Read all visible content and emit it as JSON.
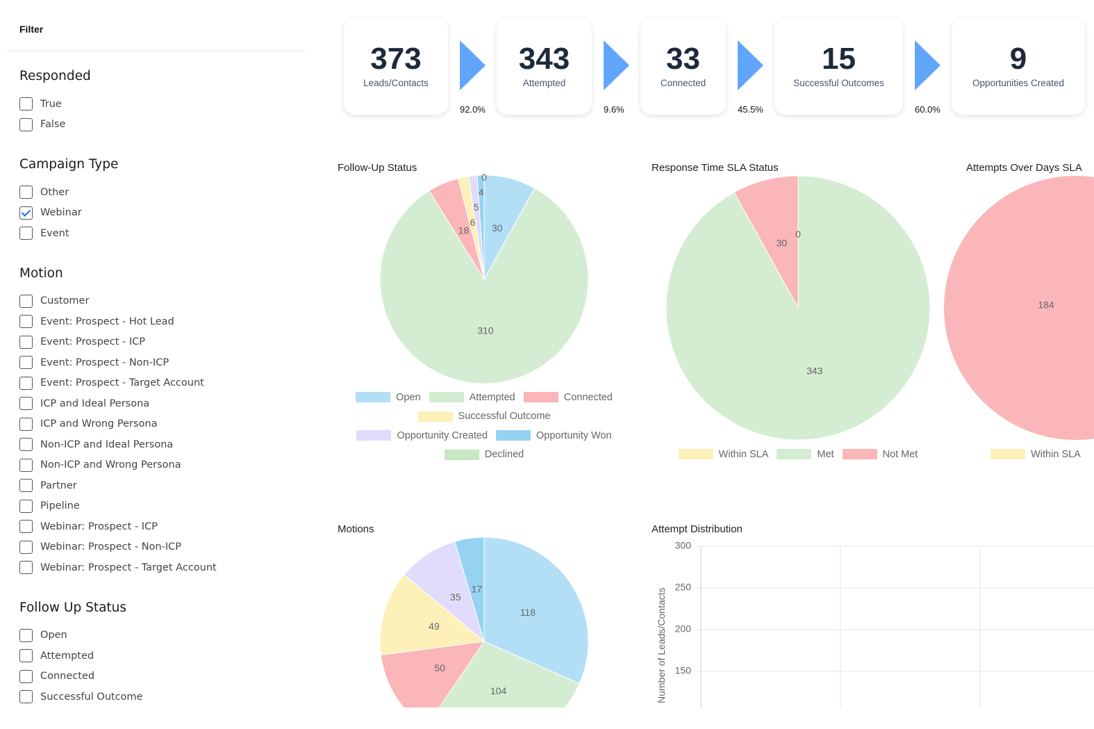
{
  "sidebar": {
    "title": "Filter",
    "sections": [
      {
        "title": "Responded",
        "items": [
          {
            "label": "True",
            "checked": false
          },
          {
            "label": "False",
            "checked": false
          }
        ]
      },
      {
        "title": "Campaign Type",
        "items": [
          {
            "label": "Other",
            "checked": false
          },
          {
            "label": "Webinar",
            "checked": true
          },
          {
            "label": "Event",
            "checked": false
          }
        ]
      },
      {
        "title": "Motion",
        "items": [
          {
            "label": "Customer",
            "checked": false
          },
          {
            "label": "Event: Prospect - Hot Lead",
            "checked": false
          },
          {
            "label": "Event: Prospect - ICP",
            "checked": false
          },
          {
            "label": "Event: Prospect - Non-ICP",
            "checked": false
          },
          {
            "label": "Event: Prospect - Target Account",
            "checked": false
          },
          {
            "label": "ICP and Ideal Persona",
            "checked": false
          },
          {
            "label": "ICP and Wrong Persona",
            "checked": false
          },
          {
            "label": "Non-ICP and Ideal Persona",
            "checked": false
          },
          {
            "label": "Non-ICP and Wrong Persona",
            "checked": false
          },
          {
            "label": "Partner",
            "checked": false
          },
          {
            "label": "Pipeline",
            "checked": false
          },
          {
            "label": "Webinar: Prospect - ICP",
            "checked": false
          },
          {
            "label": "Webinar: Prospect - Non-ICP",
            "checked": false
          },
          {
            "label": "Webinar: Prospect - Target Account",
            "checked": false
          }
        ]
      },
      {
        "title": "Follow Up Status",
        "items": [
          {
            "label": "Open",
            "checked": false
          },
          {
            "label": "Attempted",
            "checked": false
          },
          {
            "label": "Connected",
            "checked": false
          },
          {
            "label": "Successful Outcome",
            "checked": false
          }
        ]
      }
    ]
  },
  "funnel": {
    "stages": [
      {
        "value": "373",
        "label": "Leads/Contacts"
      },
      {
        "value": "343",
        "label": "Attempted"
      },
      {
        "value": "33",
        "label": "Connected"
      },
      {
        "value": "15",
        "label": "Successful Outcomes"
      },
      {
        "value": "9",
        "label": "Opportunities Created"
      }
    ],
    "conversions": [
      "92.0%",
      "9.6%",
      "45.5%",
      "60.0%"
    ],
    "arrow_color": "#60a5fa"
  },
  "chart_data": [
    {
      "type": "pie",
      "title": "Follow-Up Status",
      "categories": [
        "Open",
        "Attempted",
        "Connected",
        "Successful Outcome",
        "Opportunity Created",
        "Opportunity Won",
        "Declined"
      ],
      "values": [
        30,
        310,
        18,
        6,
        5,
        4,
        0
      ],
      "colors": [
        "#b3dff6",
        "#d4edd2",
        "#fab6b8",
        "#fdf0b8",
        "#e1dcfb",
        "#96d3f2",
        "#c6e7c1"
      ],
      "legend": "bottom"
    },
    {
      "type": "pie",
      "title": "Response Time SLA Status",
      "categories": [
        "Within SLA",
        "Met",
        "Not Met"
      ],
      "values": [
        0,
        343,
        30
      ],
      "colors": [
        "#fdf0b8",
        "#d4edd2",
        "#fab6b8"
      ],
      "legend": "bottom"
    },
    {
      "type": "pie",
      "title": "Attempts Over Days SLA",
      "categories": [
        "Within SLA"
      ],
      "visible_values": [
        {
          "category": "",
          "value": 184,
          "color": "#fab6b8"
        }
      ],
      "colors": [
        "#fdf0b8"
      ],
      "legend": "bottom"
    },
    {
      "type": "pie",
      "title": "Motions",
      "values": [
        118,
        104,
        50,
        49,
        35,
        17
      ],
      "colors": [
        "#b3dff6",
        "#d4edd2",
        "#fab6b8",
        "#fdf0b8",
        "#e1dcfb",
        "#96d3f2"
      ]
    },
    {
      "type": "bar",
      "title": "Attempt Distribution",
      "ylabel": "Number of Leads/Contacts",
      "yticks": [
        300,
        250,
        200,
        150
      ],
      "grid": true
    }
  ]
}
